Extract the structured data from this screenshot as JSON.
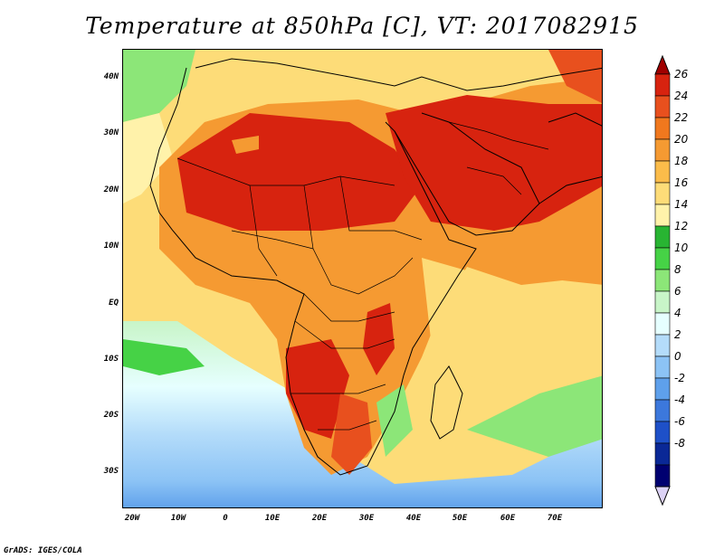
{
  "title": "Temperature at 850hPa [C], VT: 2017082915",
  "footer": "GrADS: IGES/COLA",
  "axes": {
    "lat_labels": [
      "40N",
      "30N",
      "20N",
      "10N",
      "EQ",
      "10S",
      "20S",
      "30S"
    ],
    "lon_labels": [
      "20W",
      "10W",
      "0",
      "10E",
      "20E",
      "30E",
      "40E",
      "50E",
      "60E",
      "70E"
    ]
  },
  "colorbar": {
    "labels": [
      "26",
      "24",
      "22",
      "20",
      "18",
      "16",
      "14",
      "12",
      "10",
      "8",
      "6",
      "4",
      "2",
      "0",
      "-2",
      "-4",
      "-6",
      "-8"
    ],
    "colors": [
      "#a00000",
      "#d7230f",
      "#e8501e",
      "#f0781e",
      "#f59a32",
      "#fbbc4a",
      "#fddc78",
      "#fff2aa",
      "#28b432",
      "#46d246",
      "#8ce678",
      "#c8f5c8",
      "#e6ffff",
      "#b4dcfa",
      "#8cc3f5",
      "#5ea0eb",
      "#3c78dc",
      "#1e50c8",
      "#0a2896",
      "#000070",
      "#dcd2f5"
    ]
  },
  "map": {
    "region": "Africa, Middle East and western Indian Ocean",
    "lon_range": [
      -22,
      80
    ],
    "lat_range": [
      -37,
      45
    ]
  }
}
